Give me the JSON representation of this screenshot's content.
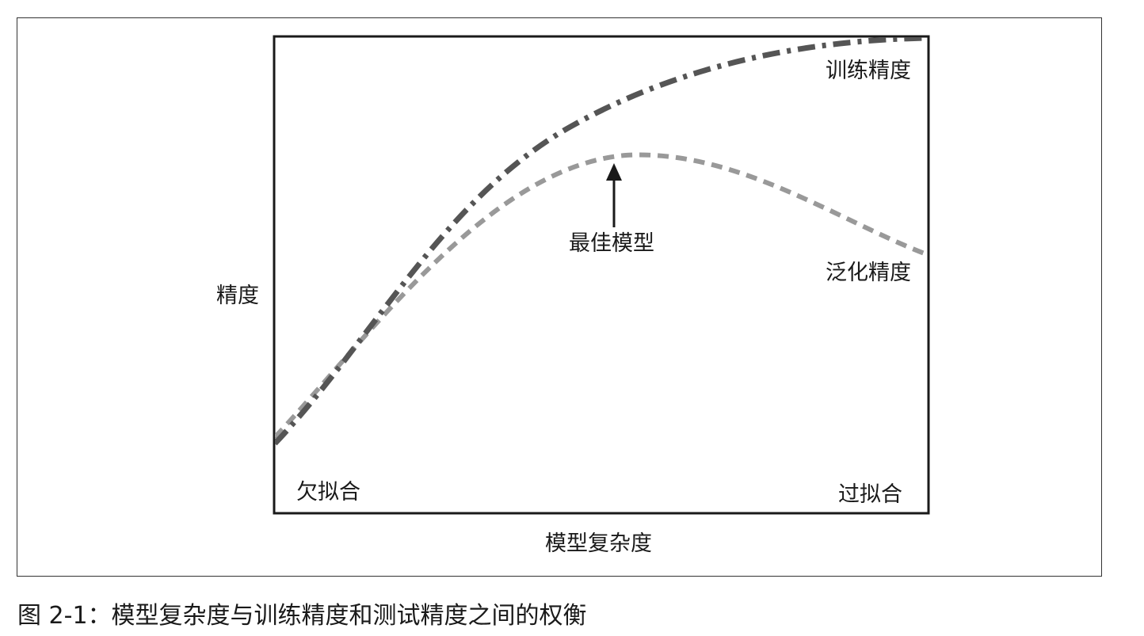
{
  "diagram": {
    "y_axis_label": "精度",
    "x_axis_label": "模型复杂度",
    "curves": {
      "training": {
        "label": "训练精度",
        "color": "#555555",
        "style": "dash-dot"
      },
      "generalization": {
        "label": "泛化精度",
        "color": "#999999",
        "style": "dashed"
      }
    },
    "annotations": {
      "best_model": "最佳模型",
      "underfitting": "欠拟合",
      "overfitting": "过拟合"
    }
  },
  "caption": "图 2-1：模型复杂度与训练精度和测试精度之间的权衡"
}
